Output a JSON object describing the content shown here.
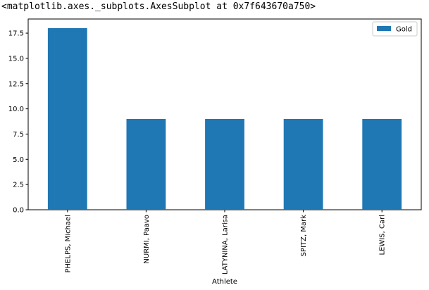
{
  "output": {
    "repr_text": "<matplotlib.axes._subplots.AxesSubplot at 0x7f643670a750>"
  },
  "chart_data": {
    "type": "bar",
    "categories": [
      "PHELPS, Michael",
      "NURMI, Paavo",
      "LATYNINA, Larisa",
      "SPITZ, Mark",
      "LEWIS, Carl"
    ],
    "series": [
      {
        "name": "Gold",
        "values": [
          18,
          9,
          9,
          9,
          9
        ],
        "color": "#1f77b4"
      }
    ],
    "xlabel": "Athlete",
    "ylabel": "",
    "ylim": [
      0,
      18.9
    ],
    "yticks": [
      0.0,
      2.5,
      5.0,
      7.5,
      10.0,
      12.5,
      15.0,
      17.5
    ],
    "ytick_labels": [
      "0.0",
      "2.5",
      "5.0",
      "7.5",
      "10.0",
      "12.5",
      "15.0",
      "17.5"
    ],
    "grid": false,
    "legend": "top-right",
    "xtick_rotation": "vertical"
  }
}
